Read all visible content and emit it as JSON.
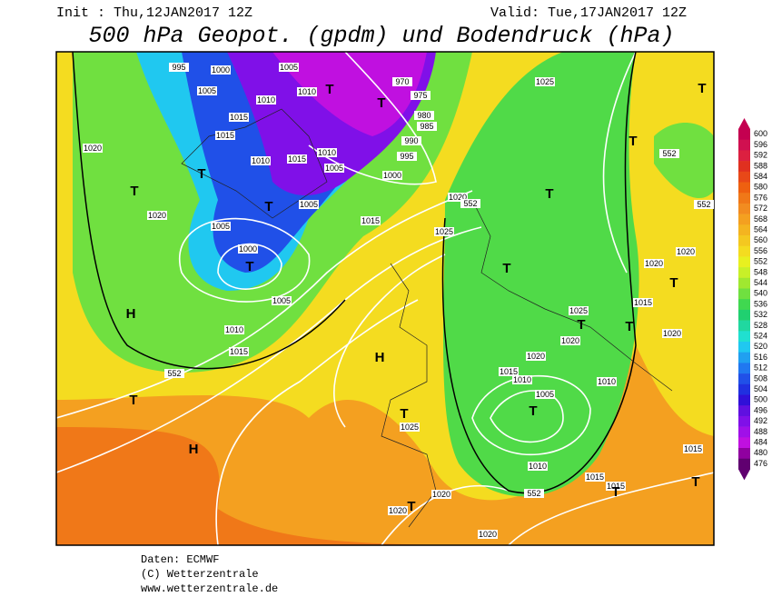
{
  "header": {
    "init": "Init : Thu,12JAN2017 12Z",
    "valid": "Valid: Tue,17JAN2017 12Z",
    "title": "500 hPa Geopot. (gpdm) und Bodendruck (hPa)"
  },
  "colorbar": {
    "values": [
      600,
      596,
      592,
      588,
      584,
      580,
      576,
      572,
      568,
      564,
      560,
      556,
      552,
      548,
      544,
      540,
      536,
      532,
      528,
      524,
      520,
      516,
      512,
      508,
      504,
      500,
      496,
      492,
      488,
      484,
      480,
      476
    ],
    "colors": [
      "#c40050",
      "#d01050",
      "#dc2040",
      "#e03020",
      "#e84818",
      "#ee6010",
      "#f07818",
      "#f28c20",
      "#f4a020",
      "#f4b420",
      "#f4c820",
      "#f4dc20",
      "#e8f020",
      "#c8f028",
      "#a0e830",
      "#70e040",
      "#40d850",
      "#20d070",
      "#20d8a0",
      "#20e0d0",
      "#20c8f0",
      "#20a0f0",
      "#2078f0",
      "#2050e8",
      "#2030e0",
      "#3010d8",
      "#6010e0",
      "#8010e8",
      "#a010e8",
      "#c010e0",
      "#9000a0",
      "#600070"
    ]
  },
  "map_labels": [
    995,
    1000,
    1005,
    1010,
    1015,
    1015,
    1010,
    1015,
    1010,
    1005,
    1005,
    1000,
    995,
    990,
    985,
    980,
    975,
    970,
    1005,
    1010,
    1025,
    1020,
    1020,
    1005,
    1000,
    1005,
    1010,
    1015,
    552,
    1015,
    1020,
    552,
    1025,
    552,
    552,
    1020,
    1020,
    1015,
    1025,
    1020,
    1020,
    1020,
    1015,
    1010,
    1005,
    1010,
    1025,
    1010,
    1015,
    1015,
    1015,
    552,
    1020,
    1020,
    1020
  ],
  "centers": [
    "T",
    "T",
    "T",
    "T",
    "T",
    "T",
    "H",
    "T",
    "H",
    "H",
    "T",
    "T",
    "T",
    "T",
    "T",
    "T",
    "T",
    "T",
    "T",
    "T",
    "T",
    "T"
  ],
  "footer": [
    "Daten: ECMWF",
    "(C) Wetterzentrale",
    "www.wetterzentrale.de"
  ]
}
